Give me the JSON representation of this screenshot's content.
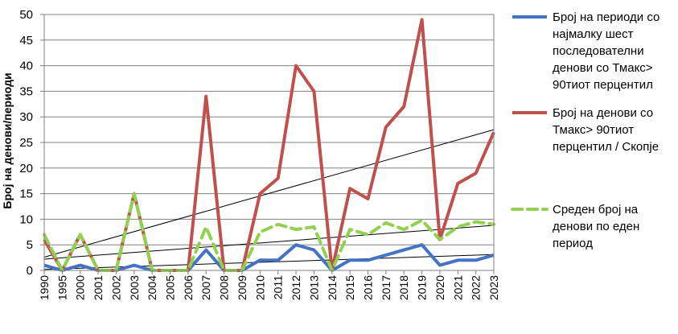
{
  "chart_data": {
    "type": "line",
    "title": "",
    "xlabel": "",
    "ylabel": "Број на денови/периоди",
    "ylim": [
      0,
      50
    ],
    "yticks": [
      0,
      5,
      10,
      15,
      20,
      25,
      30,
      35,
      40,
      45,
      50
    ],
    "grid": "horizontal",
    "legend_position": "right",
    "x": [
      "1990",
      "1995",
      "2000",
      "2001",
      "2002",
      "2003",
      "2004",
      "2005",
      "2006",
      "2007",
      "2008",
      "2009",
      "2010",
      "2011",
      "2012",
      "2013",
      "2014",
      "2015",
      "2016",
      "2017",
      "2018",
      "2019",
      "2020",
      "2021",
      "2022",
      "2023"
    ],
    "series": [
      {
        "name": "Број на периоди со најмалку шест последователни денови  со Тмакс> 90тиот перцентил",
        "name_lines": [
          "Број на периоди со",
          "најмалку шест",
          "последователни",
          "денови  со Тмакс>",
          "90тиот перцентил"
        ],
        "color": "#4472C4",
        "style": "solid",
        "values": [
          1,
          0,
          1,
          0,
          0,
          1,
          0,
          0,
          0,
          4,
          0,
          0,
          2,
          2,
          5,
          4,
          0,
          2,
          2,
          3,
          4,
          5,
          1,
          2,
          2,
          3
        ]
      },
      {
        "name": "Број на денови со Тмакс> 90тиот перцентил / Скопје",
        "name_lines": [
          "Број на денови со",
          "Тмакс> 90тиот",
          "перцентил / Скопје"
        ],
        "color": "#C0504D",
        "style": "solid",
        "values": [
          6,
          0,
          7,
          0,
          0,
          15,
          0,
          0,
          0,
          34,
          0,
          0,
          15,
          18,
          40,
          35,
          0,
          16,
          14,
          28,
          32,
          49,
          6,
          17,
          19,
          27
        ]
      },
      {
        "name": "Среден број на денови по еден период",
        "name_lines": [
          "Среден број на",
          "денови по еден",
          "период"
        ],
        "color": "#92D050",
        "style": "dashed",
        "values": [
          7,
          0,
          7,
          0,
          0,
          15,
          0,
          0,
          0,
          8.5,
          0,
          0,
          7.5,
          9,
          8,
          8.5,
          0,
          8,
          7,
          9.3,
          8,
          9.8,
          6,
          8.5,
          9.5,
          9
        ]
      }
    ],
    "trendlines": [
      {
        "series": "Број на денови со Тмакс> 90тиот перцентил / Скопје",
        "start": 2.6,
        "end": 27.5,
        "color": "#000000"
      },
      {
        "series": "Среден број на денови по еден период",
        "start": 2.2,
        "end": 8.8,
        "color": "#000000"
      },
      {
        "series": "Број на периоди со најмалку шест последователни денови  со Тмакс> 90тиот перцентил",
        "start": 0.2,
        "end": 3.1,
        "color": "#000000"
      }
    ]
  }
}
